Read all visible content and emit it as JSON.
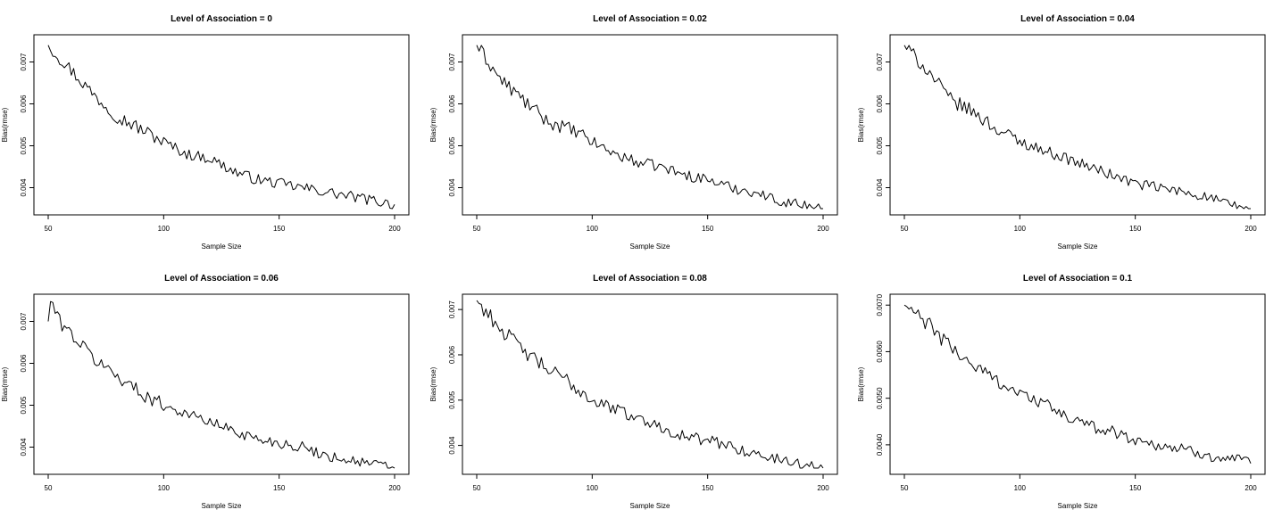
{
  "chart_data": [
    {
      "type": "line",
      "title": "Level of Association = 0",
      "xlabel": "Sample Size",
      "ylabel": "Bias(rmse)",
      "xlim": [
        50,
        200
      ],
      "ylim": [
        0.0035,
        0.0075
      ],
      "xticks": [
        50,
        100,
        150,
        200
      ],
      "xtick_labels": [
        "50",
        "100",
        "150",
        "200"
      ],
      "yticks": [
        0.004,
        0.005,
        0.006,
        0.007
      ],
      "ytick_labels": [
        "0.004",
        "0.005",
        "0.006",
        "0.007"
      ],
      "grid": false,
      "series": [
        {
          "x": [
            50,
            60,
            70,
            80,
            90,
            100,
            110,
            120,
            130,
            140,
            150,
            160,
            170,
            180,
            190,
            200
          ],
          "y": [
            0.0074,
            0.0068,
            0.0062,
            0.0057,
            0.0054,
            0.0051,
            0.0048,
            0.0047,
            0.0044,
            0.0042,
            0.0041,
            0.004,
            0.0039,
            0.0038,
            0.0037,
            0.0036
          ]
        }
      ]
    },
    {
      "type": "line",
      "title": "Level of Association = 0.02",
      "xlabel": "Sample Size",
      "ylabel": "Bias(rmse)",
      "xlim": [
        50,
        200
      ],
      "ylim": [
        0.0035,
        0.0075
      ],
      "xticks": [
        50,
        100,
        150,
        200
      ],
      "xtick_labels": [
        "50",
        "100",
        "150",
        "200"
      ],
      "yticks": [
        0.004,
        0.005,
        0.006,
        0.007
      ],
      "ytick_labels": [
        "0.004",
        "0.005",
        "0.006",
        "0.007"
      ],
      "grid": false,
      "series": [
        {
          "x": [
            50,
            60,
            70,
            80,
            90,
            100,
            110,
            120,
            130,
            140,
            150,
            160,
            170,
            180,
            190,
            200
          ],
          "y": [
            0.0074,
            0.0066,
            0.0061,
            0.0056,
            0.0054,
            0.0051,
            0.0048,
            0.0046,
            0.0045,
            0.0043,
            0.0042,
            0.004,
            0.0039,
            0.0037,
            0.0036,
            0.0035
          ]
        }
      ]
    },
    {
      "type": "line",
      "title": "Level of Association = 0.04",
      "xlabel": "Sample Size",
      "ylabel": "Bias(rmse)",
      "xlim": [
        50,
        200
      ],
      "ylim": [
        0.0035,
        0.0075
      ],
      "xticks": [
        50,
        100,
        150,
        200
      ],
      "xtick_labels": [
        "50",
        "100",
        "150",
        "200"
      ],
      "yticks": [
        0.004,
        0.005,
        0.006,
        0.007
      ],
      "ytick_labels": [
        "0.004",
        "0.005",
        "0.006",
        "0.007"
      ],
      "grid": false,
      "series": [
        {
          "x": [
            50,
            60,
            70,
            80,
            90,
            100,
            110,
            120,
            130,
            140,
            150,
            160,
            170,
            180,
            190,
            200
          ],
          "y": [
            0.0074,
            0.0068,
            0.0061,
            0.0058,
            0.0054,
            0.0051,
            0.0049,
            0.0047,
            0.0045,
            0.0043,
            0.0041,
            0.004,
            0.0039,
            0.0038,
            0.0036,
            0.0035
          ]
        }
      ]
    },
    {
      "type": "line",
      "title": "Level of Association = 0.06",
      "xlabel": "Sample Size",
      "ylabel": "Bias(rmse)",
      "xlim": [
        50,
        200
      ],
      "ylim": [
        0.0035,
        0.0075
      ],
      "xticks": [
        50,
        100,
        150,
        200
      ],
      "xtick_labels": [
        "50",
        "100",
        "150",
        "200"
      ],
      "yticks": [
        0.004,
        0.005,
        0.006,
        0.007
      ],
      "ytick_labels": [
        "0.004",
        "0.005",
        "0.006",
        "0.007"
      ],
      "grid": false,
      "series": [
        {
          "x": [
            50,
            51,
            55,
            60,
            70,
            80,
            90,
            100,
            110,
            120,
            130,
            140,
            150,
            160,
            170,
            180,
            190,
            200
          ],
          "y": [
            0.007,
            0.0075,
            0.007,
            0.0067,
            0.0061,
            0.0057,
            0.0053,
            0.005,
            0.0048,
            0.0046,
            0.0044,
            0.0042,
            0.0041,
            0.004,
            0.0038,
            0.0037,
            0.0036,
            0.0035
          ]
        }
      ]
    },
    {
      "type": "line",
      "title": "Level of Association = 0.08",
      "xlabel": "Sample Size",
      "ylabel": "Bias(rmse)",
      "xlim": [
        50,
        200
      ],
      "ylim": [
        0.0035,
        0.0072
      ],
      "xticks": [
        50,
        100,
        150,
        200
      ],
      "xtick_labels": [
        "50",
        "100",
        "150",
        "200"
      ],
      "yticks": [
        0.004,
        0.005,
        0.006,
        0.007
      ],
      "ytick_labels": [
        "0.004",
        "0.005",
        "0.006",
        "0.007"
      ],
      "grid": false,
      "series": [
        {
          "x": [
            50,
            60,
            70,
            80,
            90,
            100,
            110,
            120,
            130,
            140,
            150,
            160,
            170,
            180,
            190,
            200
          ],
          "y": [
            0.0072,
            0.0066,
            0.0061,
            0.0057,
            0.0054,
            0.005,
            0.0048,
            0.0046,
            0.0044,
            0.0042,
            0.0041,
            0.004,
            0.0038,
            0.0037,
            0.0036,
            0.0035
          ]
        }
      ]
    },
    {
      "type": "line",
      "title": "Level of Association = 0.1",
      "xlabel": "Sample Size",
      "ylabel": "Bias(rmse)",
      "xlim": [
        50,
        200
      ],
      "ylim": [
        0.0035,
        0.0071
      ],
      "xticks": [
        50,
        100,
        150,
        200
      ],
      "xtick_labels": [
        "50",
        "100",
        "150",
        "200"
      ],
      "yticks": [
        0.004,
        0.005,
        0.006,
        0.007
      ],
      "ytick_labels": [
        "0.0040",
        "0.0050",
        "0.0060",
        "0.0070"
      ],
      "grid": false,
      "series": [
        {
          "x": [
            50,
            60,
            70,
            80,
            90,
            100,
            110,
            120,
            130,
            140,
            150,
            160,
            170,
            180,
            190,
            200
          ],
          "y": [
            0.007,
            0.0066,
            0.0061,
            0.0057,
            0.0054,
            0.0051,
            0.0049,
            0.0046,
            0.0044,
            0.0043,
            0.0041,
            0.004,
            0.0039,
            0.0038,
            0.0037,
            0.0036
          ]
        }
      ]
    }
  ]
}
